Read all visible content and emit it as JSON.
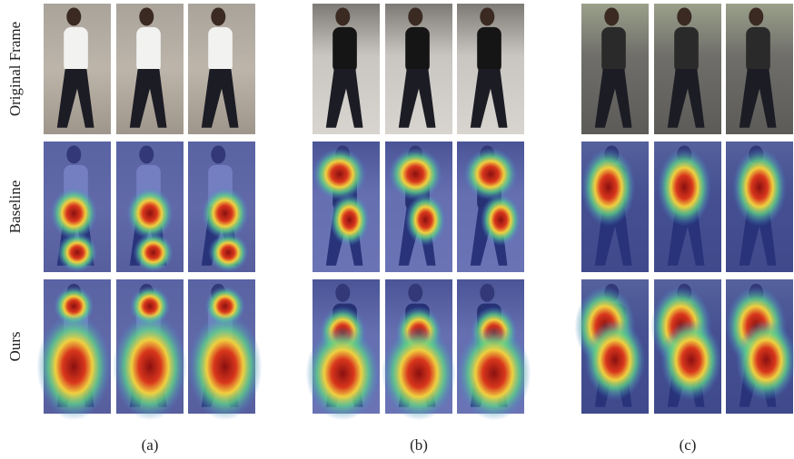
{
  "row_labels": [
    "Original Frame",
    "Baseline",
    "Ours"
  ],
  "captions": [
    "(a)",
    "(b)",
    "(c)"
  ]
}
